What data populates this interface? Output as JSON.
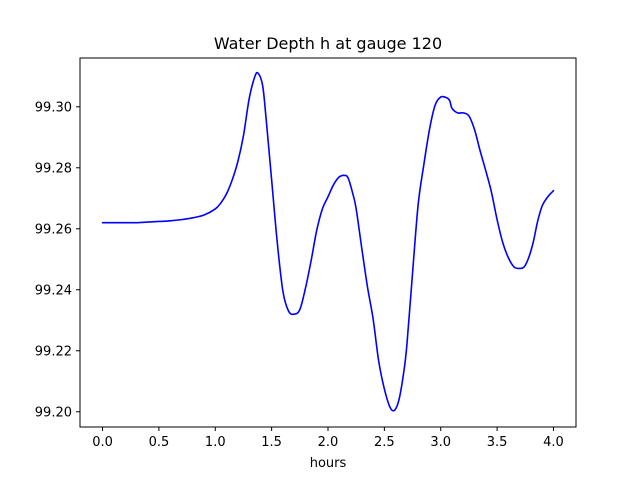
{
  "chart_data": {
    "type": "line",
    "title": "Water Depth h at gauge 120",
    "xlabel": "hours",
    "ylabel": "",
    "xlim": [
      -0.2,
      4.2
    ],
    "ylim": [
      99.195,
      99.316
    ],
    "x_ticks": [
      0.0,
      0.5,
      1.0,
      1.5,
      2.0,
      2.5,
      3.0,
      3.5,
      4.0
    ],
    "x_tick_labels": [
      "0.0",
      "0.5",
      "1.0",
      "1.5",
      "2.0",
      "2.5",
      "3.0",
      "3.5",
      "4.0"
    ],
    "y_ticks": [
      99.2,
      99.22,
      99.24,
      99.26,
      99.28,
      99.3
    ],
    "y_tick_labels": [
      "99.20",
      "99.22",
      "99.24",
      "99.26",
      "99.28",
      "99.30"
    ],
    "grid": false,
    "legend": false,
    "series": [
      {
        "color": "#0000ff",
        "x": [
          0.0,
          0.1,
          0.2,
          0.3,
          0.4,
          0.5,
          0.6,
          0.7,
          0.8,
          0.9,
          1.0,
          1.05,
          1.1,
          1.15,
          1.2,
          1.25,
          1.3,
          1.35,
          1.38,
          1.42,
          1.45,
          1.5,
          1.55,
          1.6,
          1.65,
          1.7,
          1.75,
          1.8,
          1.85,
          1.9,
          1.95,
          2.0,
          2.05,
          2.1,
          2.15,
          2.18,
          2.22,
          2.25,
          2.3,
          2.35,
          2.4,
          2.45,
          2.5,
          2.55,
          2.59,
          2.63,
          2.67,
          2.7,
          2.75,
          2.8,
          2.85,
          2.9,
          2.95,
          3.0,
          3.05,
          3.08,
          3.1,
          3.15,
          3.2,
          3.25,
          3.3,
          3.35,
          3.4,
          3.45,
          3.5,
          3.55,
          3.6,
          3.65,
          3.7,
          3.74,
          3.78,
          3.82,
          3.86,
          3.9,
          3.95,
          4.0
        ],
        "y": [
          99.262,
          99.262,
          99.262,
          99.262,
          99.2622,
          99.2624,
          99.2626,
          99.263,
          99.2636,
          99.2645,
          99.2665,
          99.2685,
          99.2715,
          99.276,
          99.282,
          99.2905,
          99.3025,
          99.3098,
          99.311,
          99.307,
          99.2965,
          99.276,
          99.2555,
          99.2395,
          99.233,
          99.232,
          99.2335,
          99.2405,
          99.2495,
          99.2595,
          99.2665,
          99.2705,
          99.2745,
          99.277,
          99.2775,
          99.2765,
          99.2715,
          99.2665,
          99.2535,
          99.241,
          99.2305,
          99.2165,
          99.2075,
          99.2015,
          99.2005,
          99.204,
          99.2125,
          99.222,
          99.2455,
          99.268,
          99.281,
          99.2925,
          99.3005,
          99.3032,
          99.303,
          99.302,
          99.2995,
          99.298,
          99.298,
          99.297,
          99.2925,
          99.2855,
          99.279,
          99.272,
          99.263,
          99.2555,
          99.2505,
          99.2475,
          99.247,
          99.2475,
          99.2505,
          99.2555,
          99.2625,
          99.2675,
          99.2705,
          99.2725
        ]
      }
    ]
  }
}
